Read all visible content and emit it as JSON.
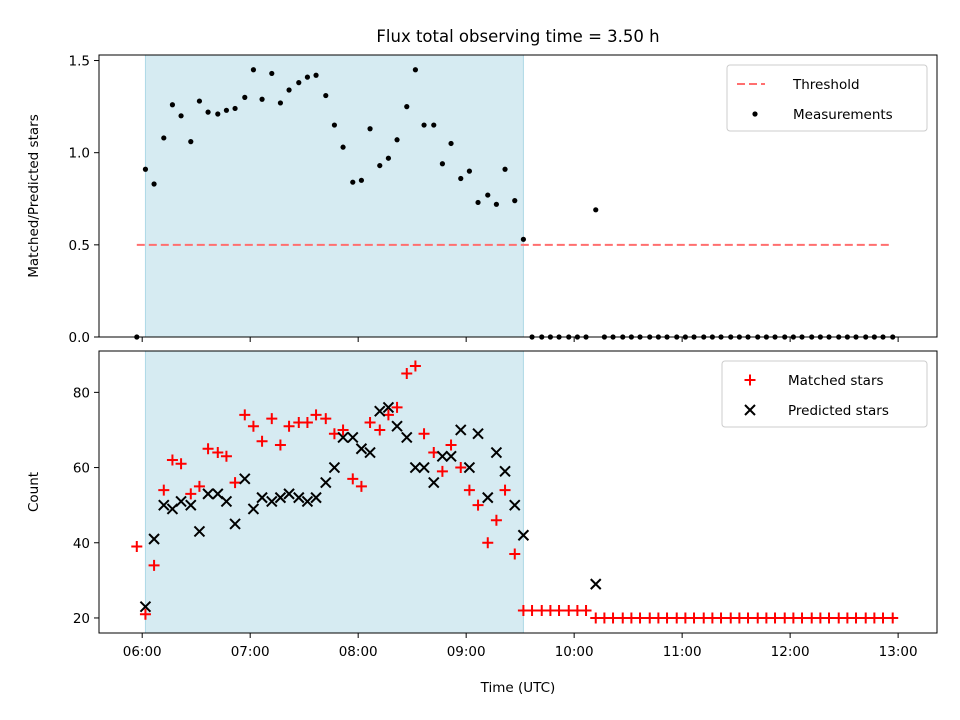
{
  "chart_data": {
    "title": "Flux total observing time = 3.50 h",
    "xlabel": "Time (UTC)",
    "x_unit": "hours UTC",
    "xlim": [
      5.6,
      13.36
    ],
    "x_ticks": [
      {
        "value": 6,
        "label": "06:00"
      },
      {
        "value": 7,
        "label": "07:00"
      },
      {
        "value": 8,
        "label": "08:00"
      },
      {
        "value": 9,
        "label": "09:00"
      },
      {
        "value": 10,
        "label": "10:00"
      },
      {
        "value": 11,
        "label": "11:00"
      },
      {
        "value": 12,
        "label": "12:00"
      },
      {
        "value": 13,
        "label": "13:00"
      }
    ],
    "shaded_span": {
      "x_start": 6.03,
      "x_end": 9.53,
      "color": "#add8e6"
    },
    "panels": [
      {
        "type": "scatter",
        "ylabel": "Matched/Predicted stars",
        "ylim": [
          0,
          1.53
        ],
        "y_ticks": [
          {
            "value": 0,
            "label": "0.0"
          },
          {
            "value": 0.5,
            "label": "0.5"
          },
          {
            "value": 1.0,
            "label": "1.0"
          },
          {
            "value": 1.5,
            "label": "1.5"
          }
        ],
        "threshold": {
          "name": "Threshold",
          "value": 0.5,
          "x_range": [
            5.95,
            12.95
          ],
          "color": "#ff6f6f"
        },
        "legend_location": "top-right",
        "series": [
          {
            "name": "Measurements",
            "marker": "dot",
            "color": "#000000",
            "x": [
              5.95,
              6.03,
              6.11,
              6.2,
              6.28,
              6.36,
              6.45,
              6.53,
              6.61,
              6.7,
              6.78,
              6.86,
              6.95,
              7.03,
              7.11,
              7.2,
              7.28,
              7.36,
              7.45,
              7.53,
              7.61,
              7.7,
              7.78,
              7.86,
              7.95,
              8.03,
              8.11,
              8.2,
              8.28,
              8.36,
              8.45,
              8.53,
              8.61,
              8.7,
              8.78,
              8.86,
              8.95,
              9.03,
              9.11,
              9.2,
              9.28,
              9.36,
              9.45,
              9.53,
              9.61,
              9.7,
              9.78,
              9.86,
              9.95,
              10.03,
              10.11,
              10.2,
              10.28,
              10.36,
              10.45,
              10.53,
              10.61,
              10.7,
              10.78,
              10.86,
              10.95,
              11.03,
              11.11,
              11.2,
              11.28,
              11.36,
              11.45,
              11.53,
              11.61,
              11.7,
              11.78,
              11.86,
              11.95,
              12.03,
              12.11,
              12.2,
              12.28,
              12.36,
              12.45,
              12.53,
              12.61,
              12.7,
              12.78,
              12.86,
              12.95
            ],
            "y": [
              0,
              0.91,
              0.83,
              1.08,
              1.26,
              1.2,
              1.06,
              1.28,
              1.22,
              1.21,
              1.23,
              1.24,
              1.3,
              1.45,
              1.29,
              1.43,
              1.27,
              1.34,
              1.38,
              1.41,
              1.42,
              1.31,
              1.15,
              1.03,
              0.84,
              0.85,
              1.13,
              0.93,
              0.97,
              1.07,
              1.25,
              1.45,
              1.15,
              1.15,
              0.94,
              1.05,
              0.86,
              0.9,
              0.73,
              0.77,
              0.72,
              0.91,
              0.74,
              0.53,
              0,
              0,
              0,
              0,
              0,
              0,
              0,
              0.69,
              0,
              0,
              0,
              0,
              0,
              0,
              0,
              0,
              0,
              0,
              0,
              0,
              0,
              0,
              0,
              0,
              0,
              0,
              0,
              0,
              0,
              0,
              0,
              0,
              0,
              0,
              0,
              0,
              0,
              0,
              0,
              0,
              0
            ]
          }
        ]
      },
      {
        "type": "scatter",
        "ylabel": "Count",
        "ylim": [
          16,
          91
        ],
        "y_ticks": [
          {
            "value": 20,
            "label": "20"
          },
          {
            "value": 40,
            "label": "40"
          },
          {
            "value": 60,
            "label": "60"
          },
          {
            "value": 80,
            "label": "80"
          }
        ],
        "legend_location": "top-right",
        "series": [
          {
            "name": "Matched stars",
            "marker": "plus",
            "color": "#ff0000",
            "x": [
              5.95,
              6.03,
              6.11,
              6.2,
              6.28,
              6.36,
              6.45,
              6.53,
              6.61,
              6.7,
              6.78,
              6.86,
              6.95,
              7.03,
              7.11,
              7.2,
              7.28,
              7.36,
              7.45,
              7.53,
              7.61,
              7.7,
              7.78,
              7.86,
              7.95,
              8.03,
              8.11,
              8.2,
              8.28,
              8.36,
              8.45,
              8.53,
              8.61,
              8.7,
              8.78,
              8.86,
              8.95,
              9.03,
              9.11,
              9.2,
              9.28,
              9.36,
              9.45,
              9.53,
              9.61,
              9.7,
              9.78,
              9.86,
              9.95,
              10.03,
              10.11,
              10.2,
              10.28,
              10.36,
              10.45,
              10.53,
              10.61,
              10.7,
              10.78,
              10.86,
              10.95,
              11.03,
              11.11,
              11.2,
              11.28,
              11.36,
              11.45,
              11.53,
              11.61,
              11.7,
              11.78,
              11.86,
              11.95,
              12.03,
              12.11,
              12.2,
              12.28,
              12.36,
              12.45,
              12.53,
              12.61,
              12.7,
              12.78,
              12.86,
              12.95
            ],
            "y": [
              39,
              21,
              34,
              54,
              62,
              61,
              53,
              55,
              65,
              64,
              63,
              56,
              74,
              71,
              67,
              73,
              66,
              71,
              72,
              72,
              74,
              73,
              69,
              70,
              57,
              55,
              72,
              70,
              74,
              76,
              85,
              87,
              69,
              64,
              59,
              66,
              60,
              54,
              50,
              40,
              46,
              54,
              37,
              22,
              22,
              22,
              22,
              22,
              22,
              22,
              22,
              20,
              20,
              20,
              20,
              20,
              20,
              20,
              20,
              20,
              20,
              20,
              20,
              20,
              20,
              20,
              20,
              20,
              20,
              20,
              20,
              20,
              20,
              20,
              20,
              20,
              20,
              20,
              20,
              20,
              20,
              20,
              20,
              20,
              20
            ]
          },
          {
            "name": "Predicted stars",
            "marker": "x",
            "color": "#000000",
            "x": [
              6.03,
              6.11,
              6.2,
              6.28,
              6.36,
              6.45,
              6.53,
              6.61,
              6.7,
              6.78,
              6.86,
              6.95,
              7.03,
              7.11,
              7.2,
              7.28,
              7.36,
              7.45,
              7.53,
              7.61,
              7.7,
              7.78,
              7.86,
              7.95,
              8.03,
              8.11,
              8.2,
              8.28,
              8.36,
              8.45,
              8.53,
              8.61,
              8.7,
              8.78,
              8.86,
              8.95,
              9.03,
              9.11,
              9.2,
              9.28,
              9.36,
              9.45,
              9.53,
              10.2
            ],
            "y": [
              23,
              41,
              50,
              49,
              51,
              50,
              43,
              53,
              53,
              51,
              45,
              57,
              49,
              52,
              51,
              52,
              53,
              52,
              51,
              52,
              56,
              60,
              68,
              68,
              65,
              64,
              75,
              76,
              71,
              68,
              60,
              60,
              56,
              63,
              63,
              70,
              60,
              69,
              52,
              64,
              59,
              50,
              42,
              29
            ]
          }
        ]
      }
    ]
  }
}
